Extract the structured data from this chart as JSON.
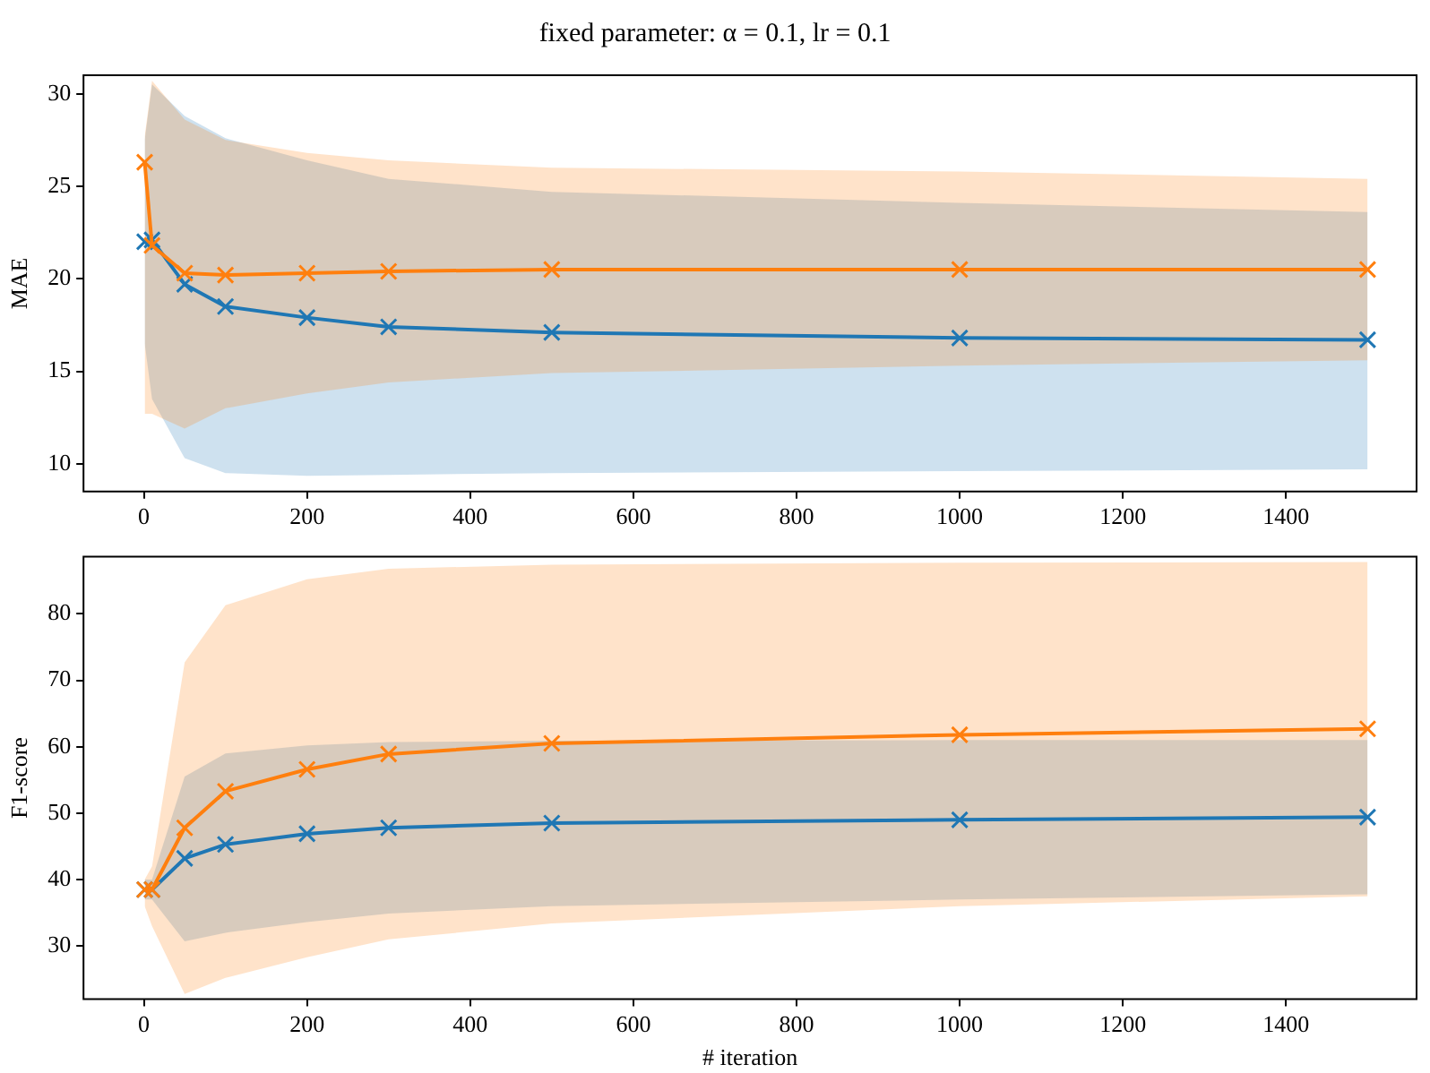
{
  "chart_data": [
    {
      "type": "line",
      "title": "fixed parameter: α = 0.1, lr = 0.1",
      "ylabel": "MAE",
      "x": [
        1,
        10,
        50,
        100,
        200,
        300,
        500,
        1000,
        1500
      ],
      "xlim": [
        -74,
        1560
      ],
      "xticks": [
        0,
        200,
        400,
        600,
        800,
        1000,
        1200,
        1400
      ],
      "ylim": [
        8.5,
        31
      ],
      "yticks": [
        10,
        15,
        20,
        25,
        30
      ],
      "grid": false,
      "legend": false,
      "marker": "cross",
      "line_style": "solid",
      "series": [
        {
          "color": "#1f77b4",
          "values": [
            22.0,
            22.1,
            19.7,
            18.5,
            17.9,
            17.4,
            17.1,
            16.8,
            16.7
          ],
          "lower": [
            16.5,
            13.5,
            10.3,
            9.5,
            9.35,
            9.4,
            9.5,
            9.6,
            9.7
          ],
          "upper": [
            27.5,
            30.5,
            28.8,
            27.6,
            26.4,
            25.4,
            24.7,
            24.1,
            23.6
          ]
        },
        {
          "color": "#ff7f0e",
          "values": [
            26.3,
            21.8,
            20.3,
            20.2,
            20.3,
            20.4,
            20.5,
            20.5,
            20.5
          ],
          "lower": [
            12.7,
            12.7,
            11.9,
            13.0,
            13.8,
            14.4,
            14.9,
            15.3,
            15.6
          ],
          "upper": [
            27.7,
            30.7,
            28.6,
            27.5,
            26.8,
            26.4,
            26.0,
            25.8,
            25.4
          ]
        }
      ]
    },
    {
      "type": "line",
      "xlabel": "# iteration",
      "ylabel": "F1-score",
      "x": [
        1,
        10,
        50,
        100,
        200,
        300,
        500,
        1000,
        1500
      ],
      "xlim": [
        -74,
        1560
      ],
      "xticks": [
        0,
        200,
        400,
        600,
        800,
        1000,
        1200,
        1400
      ],
      "ylim": [
        22,
        88.6
      ],
      "yticks": [
        30,
        40,
        50,
        60,
        70,
        80
      ],
      "grid": false,
      "legend": false,
      "marker": "cross",
      "line_style": "solid",
      "series": [
        {
          "color": "#1f77b4",
          "values": [
            38.5,
            38.5,
            43.2,
            45.3,
            46.9,
            47.8,
            48.5,
            49.0,
            49.4
          ],
          "lower": [
            37,
            37,
            30.7,
            32,
            33.6,
            34.9,
            36,
            37,
            37.8
          ],
          "upper": [
            40,
            40,
            55.5,
            59,
            60.2,
            60.7,
            60.9,
            61,
            61
          ]
        },
        {
          "color": "#ff7f0e",
          "values": [
            38.5,
            38.5,
            47.8,
            53.3,
            56.6,
            58.9,
            60.5,
            61.8,
            62.7
          ],
          "lower": [
            36,
            33,
            22.8,
            25.2,
            28.3,
            31,
            33.4,
            36,
            37.5
          ],
          "upper": [
            40,
            42,
            72.7,
            81.3,
            85.2,
            86.8,
            87.4,
            87.7,
            87.8
          ]
        }
      ]
    }
  ]
}
